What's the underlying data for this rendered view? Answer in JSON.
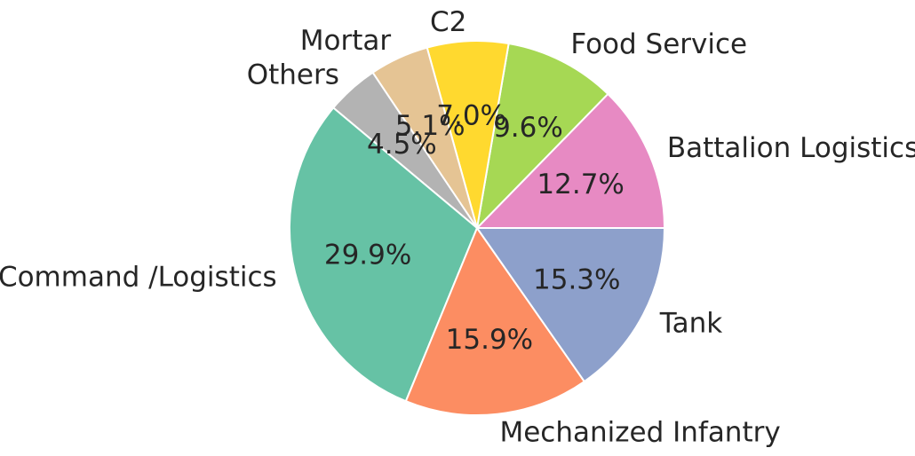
{
  "chart_data": {
    "type": "pie",
    "start_angle_deg": 0,
    "direction": "counterclockwise",
    "slices": [
      {
        "label": "Battalion Logistics",
        "value": 12.7,
        "pct_text": "12.7%",
        "color": "#e78ac3"
      },
      {
        "label": "Food Service",
        "value": 9.6,
        "pct_text": "9.6%",
        "color": "#a6d854"
      },
      {
        "label": "C2",
        "value": 7.0,
        "pct_text": "7.0%",
        "color": "#ffd92f"
      },
      {
        "label": "Mortar",
        "value": 5.1,
        "pct_text": "5.1%",
        "color": "#e5c494"
      },
      {
        "label": "Others",
        "value": 4.5,
        "pct_text": "4.5%",
        "color": "#b3b3b3"
      },
      {
        "label": "Command /Logistics",
        "value": 29.9,
        "pct_text": "29.9%",
        "color": "#66c2a5"
      },
      {
        "label": "Mechanized Infantry",
        "value": 15.9,
        "pct_text": "15.9%",
        "color": "#fc8d62"
      },
      {
        "label": "Tank",
        "value": 15.3,
        "pct_text": "15.3%",
        "color": "#8da0cb"
      }
    ]
  }
}
